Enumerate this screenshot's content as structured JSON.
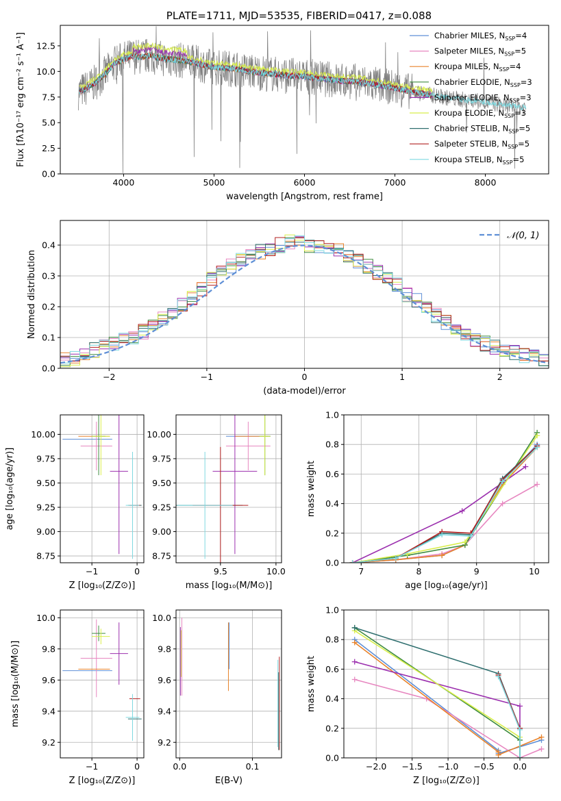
{
  "panels": {
    "spectrum": {
      "title": "PLATE=1711, MJD=53535, FIBERID=0417, z=0.088",
      "xlabel": "wavelength [Angstrom, rest frame]",
      "ylabel": "Flux [fλ10⁻¹⁷ erg cm⁻² s⁻¹ A⁻¹]",
      "xticks": [
        "4000",
        "5000",
        "6000",
        "7000",
        "8000"
      ],
      "yticks": [
        "0.0",
        "2.5",
        "5.0",
        "7.5",
        "10.0",
        "12.5"
      ]
    },
    "residuals": {
      "xlabel": "(data-model)/error",
      "ylabel": "Normed distribution",
      "xticks": [
        "−2",
        "−1",
        "0",
        "1",
        "2"
      ],
      "yticks": [
        "0.0",
        "0.1",
        "0.2",
        "0.3",
        "0.4"
      ],
      "gauss_label": "𝒩(0, 1)"
    },
    "age_z": {
      "xlabel": "Z [log₁₀(Z/Z⊙)]",
      "ylabel": "age  [log₁₀(age/yr)]",
      "xticks": [
        "−1",
        "0"
      ],
      "yticks": [
        "8.75",
        "9.00",
        "9.25",
        "9.50",
        "9.75",
        "10.00"
      ]
    },
    "age_mass": {
      "xlabel": "mass [log₁₀(M/M⊙)]",
      "xticks": [
        "9.5",
        "10.0"
      ],
      "yticks": [
        "8.75",
        "9.00",
        "9.25",
        "9.50",
        "9.75",
        "10.00"
      ]
    },
    "mw_age": {
      "xlabel": "age  [log₁₀(age/yr)]",
      "ylabel": "mass weight",
      "xticks": [
        "7",
        "8",
        "9",
        "10"
      ],
      "yticks": [
        "0.0",
        "0.2",
        "0.4",
        "0.6",
        "0.8",
        "1.0"
      ]
    },
    "mass_z": {
      "xlabel": "Z [log₁₀(Z/Z⊙)]",
      "ylabel": "mass [log₁₀(M/M⊙)]",
      "xticks": [
        "−1",
        "0"
      ],
      "yticks": [
        "9.2",
        "9.4",
        "9.6",
        "9.8",
        "10.0"
      ]
    },
    "mass_ebv": {
      "xlabel": "E(B-V)",
      "xticks": [
        "0.0",
        "0.1"
      ],
      "yticks": [
        "9.2",
        "9.4",
        "9.6",
        "9.8",
        "10.0"
      ]
    },
    "mw_z": {
      "xlabel": "Z [log₁₀(Z/Z⊙)]",
      "ylabel": "mass weight",
      "xticks": [
        "−2.0",
        "−1.5",
        "−1.0",
        "−0.5",
        "0.0"
      ],
      "yticks": [
        "0.0",
        "0.2",
        "0.4",
        "0.6",
        "0.8",
        "1.0"
      ]
    }
  },
  "chart_data": [
    {
      "type": "line",
      "title": "PLATE=1711, MJD=53535, FIBERID=0417, z=0.088",
      "xlabel": "wavelength [Angstrom, rest frame]",
      "ylabel": "Flux [fλ10⁻¹⁷ erg cm⁻² s⁻¹ A⁻¹]",
      "xlim": [
        3300,
        8700
      ],
      "ylim": [
        0,
        14.5
      ],
      "legend_position": "top-right",
      "data_envelope": {
        "x": [
          3500,
          3600,
          3700,
          3800,
          3900,
          4000,
          4100,
          4200,
          4300,
          4400,
          4500,
          4700,
          4900,
          5000,
          5200,
          5400,
          5600,
          5800,
          6000,
          6200,
          6400,
          6600,
          6800,
          7000,
          7200,
          7400,
          7600,
          7800,
          8000,
          8200,
          8400
        ],
        "y": [
          8.0,
          8.4,
          9.0,
          9.8,
          10.8,
          11.2,
          11.5,
          11.4,
          11.6,
          11.3,
          11.2,
          11.0,
          10.6,
          10.4,
          10.3,
          10.0,
          9.8,
          9.6,
          9.5,
          9.3,
          9.1,
          9.0,
          8.7,
          8.4,
          8.0,
          7.7,
          7.4,
          7.2,
          7.0,
          6.7,
          6.5
        ]
      },
      "series": [
        {
          "name": "Chabrier MILES, N_SSP=4",
          "color": "#5e8fd6"
        },
        {
          "name": "Salpeter MILES, N_SSP=5",
          "color": "#e787c0"
        },
        {
          "name": "Kroupa MILES, N_SSP=4",
          "color": "#e8822a"
        },
        {
          "name": "Chabrier ELODIE, N_SSP=3",
          "color": "#3f8c3f"
        },
        {
          "name": "Salpeter ELODIE, N_SSP=3",
          "color": "#9b2fae"
        },
        {
          "name": "Kroupa ELODIE, N_SSP=3",
          "color": "#d8ee4a"
        },
        {
          "name": "Chabrier STELIB, N_SSP=5",
          "color": "#2f6f6f"
        },
        {
          "name": "Salpeter STELIB, N_SSP=5",
          "color": "#b22020"
        },
        {
          "name": "Kroupa STELIB, N_SSP=5",
          "color": "#7ed9e0"
        }
      ],
      "legend_labels": [
        [
          "Chabrier MILES, N",
          "SSP",
          "=4"
        ],
        [
          "Salpeter MILES, N",
          "SSP",
          "=5"
        ],
        [
          "Kroupa MILES, N",
          "SSP",
          "=4"
        ],
        [
          "Chabrier ELODIE, N",
          "SSP",
          "=3"
        ],
        [
          "Salpeter ELODIE, N",
          "SSP",
          "=3"
        ],
        [
          "Kroupa ELODIE, N",
          "SSP",
          "=3"
        ],
        [
          "Chabrier STELIB, N",
          "SSP",
          "=5"
        ],
        [
          "Salpeter STELIB, N",
          "SSP",
          "=5"
        ],
        [
          "Kroupa STELIB, N",
          "SSP",
          "=5"
        ]
      ]
    },
    {
      "type": "line",
      "xlabel": "(data-model)/error",
      "ylabel": "Normed distribution",
      "xlim": [
        -2.5,
        2.5
      ],
      "ylim": [
        0,
        0.48
      ],
      "legend_position": "top-right",
      "gaussian": {
        "name": "𝒩(0, 1)",
        "mu": 0,
        "sigma": 1,
        "color": "#5e8fd6"
      },
      "bin_edges_step": 0.1,
      "bin_centers": [
        -2.45,
        -2.35,
        -2.25,
        -2.15,
        -2.05,
        -1.95,
        -1.85,
        -1.75,
        -1.65,
        -1.55,
        -1.45,
        -1.35,
        -1.25,
        -1.15,
        -1.05,
        -0.95,
        -0.85,
        -0.75,
        -0.65,
        -0.55,
        -0.45,
        -0.35,
        -0.25,
        -0.15,
        -0.05,
        0.05,
        0.15,
        0.25,
        0.35,
        0.45,
        0.55,
        0.65,
        0.75,
        0.85,
        0.95,
        1.05,
        1.15,
        1.25,
        1.35,
        1.45,
        1.55,
        1.65,
        1.75,
        1.85,
        1.95,
        2.05,
        2.15,
        2.25,
        2.35,
        2.45
      ],
      "base_distribution": [
        0.03,
        0.035,
        0.045,
        0.06,
        0.07,
        0.08,
        0.09,
        0.1,
        0.12,
        0.14,
        0.16,
        0.18,
        0.21,
        0.23,
        0.26,
        0.29,
        0.31,
        0.33,
        0.35,
        0.37,
        0.38,
        0.39,
        0.4,
        0.41,
        0.41,
        0.4,
        0.4,
        0.39,
        0.38,
        0.37,
        0.35,
        0.33,
        0.31,
        0.29,
        0.27,
        0.24,
        0.22,
        0.19,
        0.17,
        0.15,
        0.13,
        0.11,
        0.09,
        0.08,
        0.07,
        0.06,
        0.05,
        0.04,
        0.035,
        0.03
      ]
    },
    {
      "type": "scatter",
      "xlabel": "Z [log₁₀(Z/Z⊙)]",
      "ylabel": "age  [log₁₀(age/yr)]",
      "xlim": [
        -1.7,
        0.15
      ],
      "ylim": [
        8.68,
        10.2
      ],
      "points": [
        {
          "x": -1.1,
          "y": 9.95,
          "xerr": 0.55,
          "yerr": 0.0,
          "color": "#5e8fd6"
        },
        {
          "x": -0.9,
          "y": 9.88,
          "xerr": 0.35,
          "yerr": 0.25,
          "color": "#e787c0"
        },
        {
          "x": -0.95,
          "y": 9.98,
          "xerr": 0.35,
          "yerr": 0.0,
          "color": "#e8822a"
        },
        {
          "x": -0.85,
          "y": 9.98,
          "xerr": 0.15,
          "yerr": 0.4,
          "color": "#3f8c3f"
        },
        {
          "x": -0.4,
          "y": 9.62,
          "xerr": 0.2,
          "yerr": 0.85,
          "color": "#9b2fae"
        },
        {
          "x": -0.8,
          "y": 9.98,
          "xerr": 0.2,
          "yerr": 0.4,
          "color": "#d8ee4a"
        },
        {
          "x": -0.05,
          "y": 9.27,
          "xerr": 0.15,
          "yerr": 0.0,
          "color": "#2f6f6f"
        },
        {
          "x": -0.05,
          "y": 9.27,
          "xerr": 0.12,
          "yerr": 0.0,
          "color": "#b22020"
        },
        {
          "x": -0.1,
          "y": 9.27,
          "xerr": 0.15,
          "yerr": 0.55,
          "color": "#7ed9e0"
        }
      ]
    },
    {
      "type": "scatter",
      "xlabel": "mass [log₁₀(M/M⊙)]",
      "xlim": [
        9.1,
        10.05
      ],
      "ylim": [
        8.68,
        10.2
      ],
      "points": [
        {
          "x": 9.75,
          "y": 9.98,
          "xerr": 0.2,
          "yerr": 0.0,
          "color": "#5e8fd6"
        },
        {
          "x": 9.75,
          "y": 9.88,
          "xerr": 0.2,
          "yerr": 0.25,
          "color": "#e787c0"
        },
        {
          "x": 9.78,
          "y": 9.98,
          "xerr": 0.15,
          "yerr": 0.0,
          "color": "#e8822a"
        },
        {
          "x": 9.9,
          "y": 9.98,
          "xerr": 0.05,
          "yerr": 0.4,
          "color": "#3f8c3f"
        },
        {
          "x": 9.63,
          "y": 9.62,
          "xerr": 0.2,
          "yerr": 0.85,
          "color": "#9b2fae"
        },
        {
          "x": 9.9,
          "y": 9.98,
          "xerr": 0.05,
          "yerr": 0.4,
          "color": "#d8ee4a"
        },
        {
          "x": 9.4,
          "y": 9.27,
          "xerr": 0.3,
          "yerr": 0.0,
          "color": "#2f6f6f"
        },
        {
          "x": 9.5,
          "y": 9.27,
          "xerr": 0.25,
          "yerr": 0.6,
          "color": "#b22020"
        },
        {
          "x": 9.36,
          "y": 9.27,
          "xerr": 0.25,
          "yerr": 0.55,
          "color": "#7ed9e0"
        }
      ]
    },
    {
      "type": "line",
      "xlabel": "age  [log₁₀(age/yr)]",
      "ylabel": "mass weight",
      "xlim": [
        6.7,
        10.25
      ],
      "ylim": [
        0,
        1.0
      ],
      "series": [
        {
          "name": "Chabrier MILES",
          "color": "#5e8fd6",
          "x": [
            6.85,
            7.6,
            8.4,
            8.8,
            9.45,
            10.05
          ],
          "y": [
            0.0,
            0.02,
            0.05,
            0.12,
            0.55,
            0.8
          ]
        },
        {
          "name": "Salpeter MILES",
          "color": "#e787c0",
          "x": [
            6.85,
            7.6,
            8.4,
            8.8,
            9.45,
            10.05
          ],
          "y": [
            0.0,
            0.02,
            0.06,
            0.12,
            0.4,
            0.53
          ]
        },
        {
          "name": "Kroupa MILES",
          "color": "#e8822a",
          "x": [
            6.85,
            7.6,
            8.4,
            8.8,
            9.45,
            10.05
          ],
          "y": [
            0.0,
            0.02,
            0.05,
            0.12,
            0.53,
            0.78
          ]
        },
        {
          "name": "Chabrier ELODIE",
          "color": "#3f8c3f",
          "x": [
            6.85,
            7.8,
            8.8,
            10.05
          ],
          "y": [
            0.0,
            0.05,
            0.12,
            0.88
          ]
        },
        {
          "name": "Salpeter ELODIE",
          "color": "#9b2fae",
          "x": [
            6.85,
            8.75,
            9.85
          ],
          "y": [
            0.0,
            0.35,
            0.65
          ]
        },
        {
          "name": "Kroupa ELODIE",
          "color": "#d8ee4a",
          "x": [
            6.85,
            7.8,
            8.8,
            10.05
          ],
          "y": [
            0.0,
            0.06,
            0.14,
            0.86
          ]
        },
        {
          "name": "Chabrier STELIB",
          "color": "#2f6f6f",
          "x": [
            6.85,
            7.6,
            8.4,
            8.9,
            9.45,
            10.05
          ],
          "y": [
            0.0,
            0.03,
            0.2,
            0.19,
            0.57,
            0.79
          ]
        },
        {
          "name": "Salpeter STELIB",
          "color": "#b22020",
          "x": [
            6.85,
            7.6,
            8.4,
            8.9,
            9.45,
            10.05
          ],
          "y": [
            0.0,
            0.03,
            0.21,
            0.2,
            0.56,
            0.79
          ]
        },
        {
          "name": "Kroupa STELIB",
          "color": "#7ed9e0",
          "x": [
            6.85,
            7.6,
            8.4,
            8.9,
            9.45,
            10.05
          ],
          "y": [
            0.0,
            0.03,
            0.19,
            0.18,
            0.55,
            0.78
          ]
        }
      ]
    },
    {
      "type": "scatter",
      "xlabel": "Z [log₁₀(Z/Z⊙)]",
      "ylabel": "mass [log₁₀(M/M⊙)]",
      "xlim": [
        -1.7,
        0.15
      ],
      "ylim": [
        9.1,
        10.05
      ],
      "points": [
        {
          "x": -1.1,
          "y": 9.66,
          "xerr": 0.55,
          "yerr": 0.0,
          "color": "#5e8fd6"
        },
        {
          "x": -0.9,
          "y": 9.74,
          "xerr": 0.35,
          "yerr": 0.25,
          "color": "#e787c0"
        },
        {
          "x": -0.95,
          "y": 9.67,
          "xerr": 0.35,
          "yerr": 0.0,
          "color": "#e8822a"
        },
        {
          "x": -0.85,
          "y": 9.9,
          "xerr": 0.15,
          "yerr": 0.05,
          "color": "#3f8c3f"
        },
        {
          "x": -0.4,
          "y": 9.77,
          "xerr": 0.2,
          "yerr": 0.2,
          "color": "#9b2fae"
        },
        {
          "x": -0.8,
          "y": 9.88,
          "xerr": 0.2,
          "yerr": 0.05,
          "color": "#d8ee4a"
        },
        {
          "x": -0.05,
          "y": 9.35,
          "xerr": 0.15,
          "yerr": 0.0,
          "color": "#2f6f6f"
        },
        {
          "x": -0.05,
          "y": 9.48,
          "xerr": 0.12,
          "yerr": 0.0,
          "color": "#b22020"
        },
        {
          "x": -0.1,
          "y": 9.36,
          "xerr": 0.15,
          "yerr": 0.15,
          "color": "#7ed9e0"
        }
      ]
    },
    {
      "type": "scatter",
      "xlabel": "E(B-V)",
      "xlim": [
        -0.005,
        0.14
      ],
      "ylim": [
        9.1,
        10.05
      ],
      "points": [
        {
          "x": 0.003,
          "y": 9.75,
          "xerr": 0.0,
          "yerr": 0.25,
          "color": "#e787c0"
        },
        {
          "x": 0.001,
          "y": 9.72,
          "xerr": 0.0,
          "yerr": 0.22,
          "color": "#9b2fae"
        },
        {
          "x": 0.002,
          "y": 9.77,
          "xerr": 0.0,
          "yerr": 0.15,
          "color": "#d8ee4a"
        },
        {
          "x": 0.067,
          "y": 9.75,
          "xerr": 0.0,
          "yerr": 0.22,
          "color": "#e8822a"
        },
        {
          "x": 0.068,
          "y": 9.82,
          "xerr": 0.0,
          "yerr": 0.15,
          "color": "#5e8fd6"
        },
        {
          "x": 0.137,
          "y": 9.45,
          "xerr": 0.0,
          "yerr": 0.3,
          "color": "#b22020"
        },
        {
          "x": 0.136,
          "y": 9.4,
          "xerr": 0.0,
          "yerr": 0.25,
          "color": "#2f6f6f"
        },
        {
          "x": 0.135,
          "y": 9.45,
          "xerr": 0.0,
          "yerr": 0.28,
          "color": "#7ed9e0"
        }
      ]
    },
    {
      "type": "line",
      "xlabel": "Z [log₁₀(Z/Z⊙)]",
      "ylabel": "mass weight",
      "xlim": [
        -2.45,
        0.4
      ],
      "ylim": [
        0,
        1.0
      ],
      "series": [
        {
          "name": "Chabrier MILES",
          "color": "#5e8fd6",
          "x": [
            -2.3,
            -0.3,
            -0.3,
            0.3
          ],
          "y": [
            0.8,
            0.05,
            0.03,
            0.12
          ]
        },
        {
          "name": "Salpeter MILES",
          "color": "#e787c0",
          "x": [
            -2.3,
            -1.3,
            0.0,
            0.3
          ],
          "y": [
            0.53,
            0.4,
            0.0,
            0.06
          ]
        },
        {
          "name": "Kroupa MILES",
          "color": "#e8822a",
          "x": [
            -2.3,
            -0.3,
            -0.3,
            0.3
          ],
          "y": [
            0.78,
            0.04,
            0.02,
            0.14
          ]
        },
        {
          "name": "Chabrier ELODIE",
          "color": "#3f8c3f",
          "x": [
            -2.3,
            0.0,
            0.0
          ],
          "y": [
            0.88,
            0.12,
            0.0
          ]
        },
        {
          "name": "Salpeter ELODIE",
          "color": "#9b2fae",
          "x": [
            -2.3,
            0.0,
            0.0
          ],
          "y": [
            0.65,
            0.35,
            0.0
          ]
        },
        {
          "name": "Kroupa ELODIE",
          "color": "#d8ee4a",
          "x": [
            -2.3,
            0.0,
            0.0
          ],
          "y": [
            0.86,
            0.14,
            0.0
          ]
        },
        {
          "name": "Chabrier STELIB",
          "color": "#2f6f6f",
          "x": [
            -2.3,
            -0.3,
            0.0,
            0.0
          ],
          "y": [
            0.88,
            0.57,
            0.2,
            0.0
          ]
        },
        {
          "name": "Salpeter STELIB",
          "color": "#b22020",
          "x": [
            -0.3,
            0.0
          ],
          "y": [
            0.56,
            0.2
          ]
        },
        {
          "name": "Kroupa STELIB",
          "color": "#7ed9e0",
          "x": [
            -0.3,
            0.0,
            0.0
          ],
          "y": [
            0.55,
            0.19,
            0.0
          ]
        }
      ]
    }
  ]
}
